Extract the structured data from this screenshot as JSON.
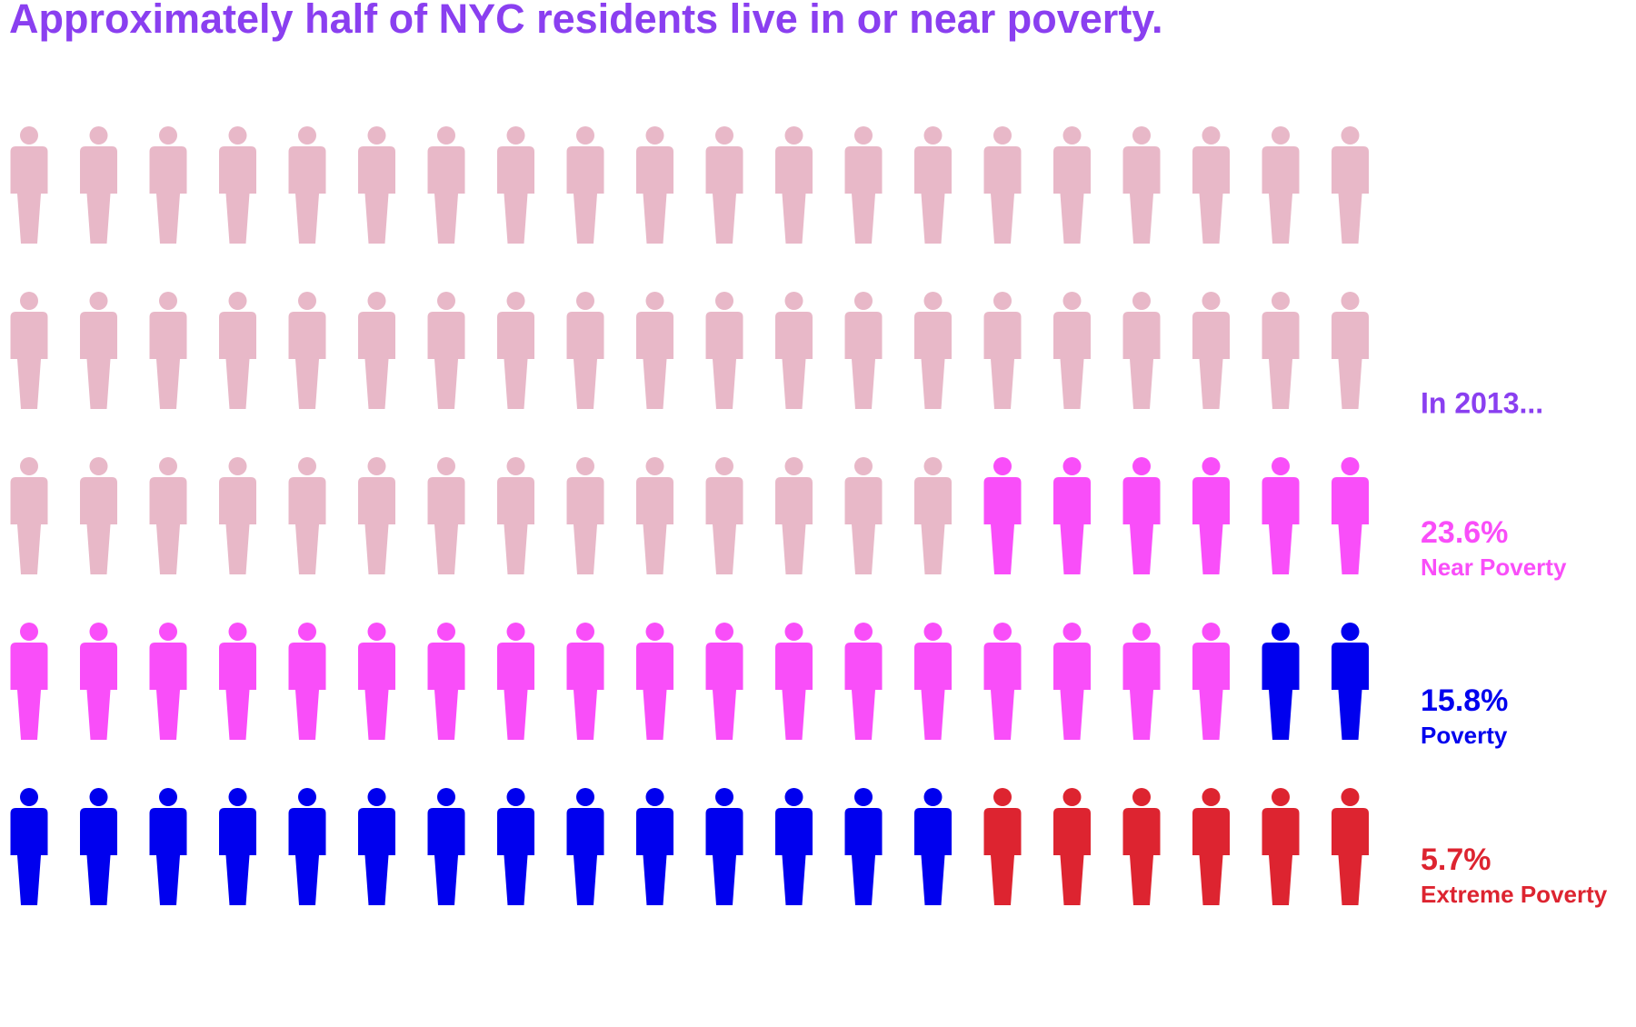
{
  "chart_data": {
    "type": "pictogram",
    "title": "Approximately half of NYC residents live in or near poverty.",
    "annotation": "In 2013...",
    "base_color": "#e8b8c8",
    "series": [
      {
        "name": "Near Poverty",
        "color": "#f94ef9",
        "values": [
          23.6
        ],
        "value_labels": [
          "23.6%"
        ]
      },
      {
        "name": "Poverty",
        "color": "#0000ee",
        "values": [
          15.8
        ],
        "value_labels": [
          "15.8%"
        ]
      },
      {
        "name": "Extreme Poverty",
        "color": "#dd2430",
        "values": [
          5.7
        ],
        "value_labels": [
          "5.7%"
        ]
      }
    ]
  }
}
